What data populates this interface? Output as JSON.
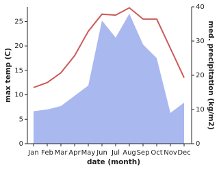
{
  "chart_data": {
    "type": "line-area",
    "x_label": "date (month)",
    "y_label": "max temp (C)",
    "y2_label": "med. precipitation (kg/m2)",
    "categories": [
      "Jan",
      "Feb",
      "Mar",
      "Apr",
      "May",
      "Jun",
      "Jul",
      "Aug",
      "Sep",
      "Oct",
      "Nov",
      "Dec"
    ],
    "series": [
      {
        "name": "max temp",
        "color": "#cd5a5a",
        "values": [
          11.5,
          12.5,
          14.5,
          18,
          23,
          26.5,
          26.3,
          27.8,
          25.5,
          25.5,
          19.5,
          13.5
        ]
      },
      {
        "name": "med. precipitation",
        "color": "#aab8f0",
        "axis": "y2",
        "values": [
          9.5,
          10,
          11,
          14,
          17,
          36,
          31,
          38,
          29,
          25,
          9,
          12
        ]
      }
    ],
    "ylim": [
      0,
      28
    ],
    "yticks": [
      0,
      5,
      10,
      15,
      20,
      25
    ],
    "y2lim": [
      0,
      40
    ],
    "y2ticks": [
      0,
      10,
      20,
      30,
      40
    ]
  }
}
